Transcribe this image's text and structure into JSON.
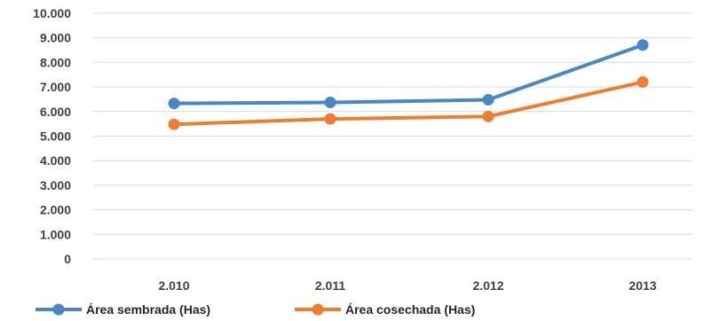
{
  "chart_data": {
    "type": "line",
    "categories": [
      "2.010",
      "2.011",
      "2.012",
      "2013"
    ],
    "series": [
      {
        "name": "Área sembrada (Has)",
        "color": "#4a86c6",
        "values": [
          6330,
          6370,
          6480,
          8710
        ]
      },
      {
        "name": "Área cosechada (Has)",
        "color": "#ed7d31",
        "values": [
          5480,
          5700,
          5800,
          7200
        ]
      }
    ],
    "ylim": [
      0,
      10000
    ],
    "yticks": [
      {
        "value": 0,
        "label": "0"
      },
      {
        "value": 1000,
        "label": "1.000"
      },
      {
        "value": 2000,
        "label": "2.000"
      },
      {
        "value": 3000,
        "label": "3.000"
      },
      {
        "value": 4000,
        "label": "4.000"
      },
      {
        "value": 5000,
        "label": "5.000"
      },
      {
        "value": 6000,
        "label": "6.000"
      },
      {
        "value": 7000,
        "label": "7.000"
      },
      {
        "value": 8000,
        "label": "8.000"
      },
      {
        "value": 9000,
        "label": "9.000"
      },
      {
        "value": 10000,
        "label": "10.000"
      }
    ],
    "grid": true,
    "legend_position": "bottom-left"
  }
}
